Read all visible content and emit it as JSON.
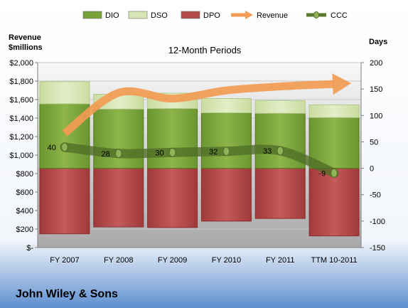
{
  "company": "John Wiley & Sons",
  "chart_data": {
    "type": "bar",
    "title": "12-Month Periods",
    "left_axis_title": [
      "Revenue",
      "$millions"
    ],
    "right_axis_title": "Days",
    "categories": [
      "FY 2007",
      "FY 2008",
      "FY 2009",
      "FY 2010",
      "FY 2011",
      "TTM 10-2011"
    ],
    "left_axis": {
      "min": 0,
      "max": 2000,
      "step": 200,
      "tick_labels": [
        "$-",
        "$200",
        "$400",
        "$600",
        "$800",
        "$1,000",
        "$1,200",
        "$1,400",
        "$1,600",
        "$1,800",
        "$2,000"
      ]
    },
    "right_axis": {
      "min": -150,
      "max": 200,
      "step": 50,
      "tick_labels": [
        "-150",
        "-100",
        "-50",
        "0",
        "50",
        "100",
        "150",
        "200"
      ]
    },
    "legend_position": "top",
    "legend": [
      {
        "name": "DIO",
        "kind": "bar",
        "color": "#78a33a"
      },
      {
        "name": "DSO",
        "kind": "bar",
        "color": "#d6e6b2"
      },
      {
        "name": "DPO",
        "kind": "bar",
        "color": "#b54a4a"
      },
      {
        "name": "Revenue",
        "kind": "arrow",
        "color": "#f29b52"
      },
      {
        "name": "CCC",
        "kind": "line-marker",
        "color": "#5a7a2e"
      }
    ],
    "series": [
      {
        "name": "DPO",
        "axis": "days",
        "values": [
          -124,
          -111,
          -112,
          -100,
          -95,
          -128
        ]
      },
      {
        "name": "DIO",
        "axis": "days",
        "values": [
          122,
          112,
          113,
          105,
          104,
          96
        ]
      },
      {
        "name": "DSO",
        "axis": "days",
        "values": [
          42,
          28,
          29,
          27,
          24,
          24
        ]
      },
      {
        "name": "CCC",
        "axis": "days",
        "values": [
          40,
          28,
          30,
          32,
          33,
          -9
        ]
      },
      {
        "name": "Revenue",
        "axis": "usd_millions",
        "values": [
          1235,
          1673,
          1611,
          1699,
          1742,
          1768
        ]
      }
    ],
    "data_labels": [
      "40",
      "28",
      "30",
      "32",
      "33",
      "-9"
    ]
  }
}
